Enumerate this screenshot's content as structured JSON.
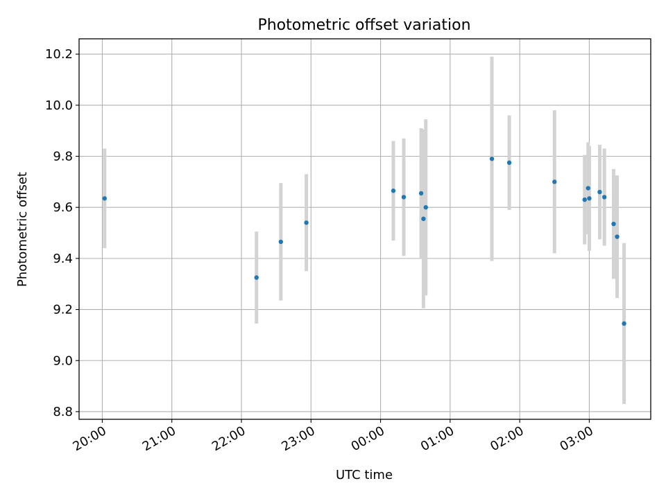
{
  "chart_data": {
    "type": "scatter",
    "title": "Photometric offset variation",
    "xlabel": "UTC time",
    "ylabel": "Photometric offset",
    "x_ticks": [
      "20:00",
      "21:00",
      "22:00",
      "23:00",
      "00:00",
      "01:00",
      "02:00",
      "03:00"
    ],
    "y_ticks": [
      "8.8",
      "9.0",
      "9.2",
      "9.4",
      "9.6",
      "9.8",
      "10.0",
      "10.2"
    ],
    "xlim": [
      "19:40",
      "03:53"
    ],
    "ylim": [
      8.77,
      10.26
    ],
    "grid": true,
    "series": [
      {
        "marker_color": "#1f77b4",
        "errorbar_color": "#d3d3d3",
        "points": [
          {
            "time": "20:02",
            "y": 9.635,
            "err": 0.195
          },
          {
            "time": "22:13",
            "y": 9.325,
            "err": 0.18
          },
          {
            "time": "22:34",
            "y": 9.465,
            "err": 0.23
          },
          {
            "time": "22:56",
            "y": 9.54,
            "err": 0.19
          },
          {
            "time": "00:11",
            "y": 9.665,
            "err": 0.195
          },
          {
            "time": "00:20",
            "y": 9.64,
            "err": 0.23
          },
          {
            "time": "00:35",
            "y": 9.655,
            "err": 0.255
          },
          {
            "time": "00:37",
            "y": 9.555,
            "err": 0.35
          },
          {
            "time": "00:39",
            "y": 9.6,
            "err": 0.345
          },
          {
            "time": "01:36",
            "y": 9.79,
            "err": 0.4
          },
          {
            "time": "01:51",
            "y": 9.775,
            "err": 0.185
          },
          {
            "time": "02:30",
            "y": 9.7,
            "err": 0.28
          },
          {
            "time": "02:56",
            "y": 9.63,
            "err": 0.175
          },
          {
            "time": "02:59",
            "y": 9.675,
            "err": 0.18
          },
          {
            "time": "03:00",
            "y": 9.635,
            "err": 0.205
          },
          {
            "time": "03:09",
            "y": 9.66,
            "err": 0.185
          },
          {
            "time": "03:13",
            "y": 9.64,
            "err": 0.19
          },
          {
            "time": "03:21",
            "y": 9.535,
            "err": 0.215
          },
          {
            "time": "03:24",
            "y": 9.485,
            "err": 0.24
          },
          {
            "time": "03:30",
            "y": 9.145,
            "err": 0.315
          }
        ]
      }
    ]
  }
}
